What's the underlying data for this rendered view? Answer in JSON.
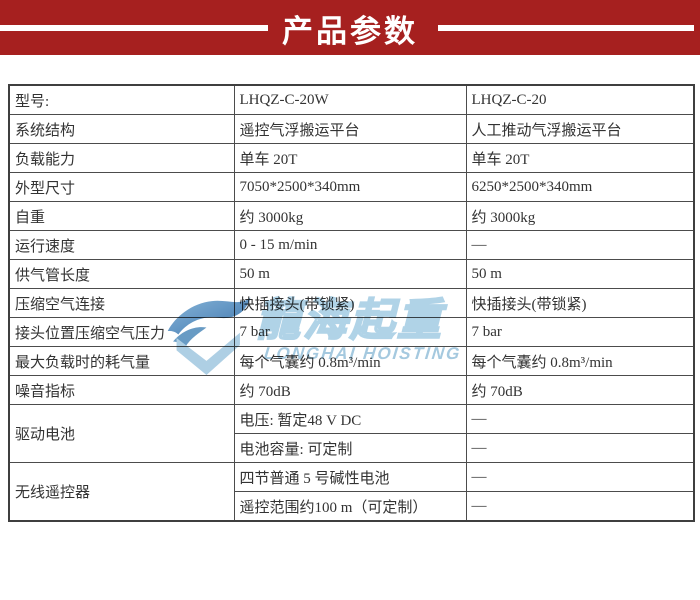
{
  "header": {
    "title": "产品参数",
    "banner_color": "#a6201f"
  },
  "colors": {
    "banner_red": "#a6201f",
    "table_border": "#4c4c4c",
    "table_text": "#333333",
    "watermark_light_blue": "#a9cfe5",
    "watermark_dark_blue": "#3d76ad"
  },
  "watermark": {
    "cn": "龍海起重",
    "en": "LONGHAI HOISTING",
    "logo_icon": "longhai-bird-chevron"
  },
  "table": {
    "rows": [
      {
        "label": "型号:",
        "cells": [
          "LHQZ-C-20W",
          "LHQZ-C-20"
        ]
      },
      {
        "label": "系统结构",
        "cells": [
          "遥控气浮搬运平台",
          "人工推动气浮搬运平台"
        ]
      },
      {
        "label": "负载能力",
        "cells": [
          "单车 20T",
          "单车 20T"
        ]
      },
      {
        "label": "外型尺寸",
        "cells": [
          "7050*2500*340mm",
          "6250*2500*340mm"
        ]
      },
      {
        "label": "自重",
        "cells": [
          "约 3000kg",
          "约 3000kg"
        ]
      },
      {
        "label": "运行速度",
        "cells": [
          "0 - 15 m/min",
          "—"
        ]
      },
      {
        "label": "供气管长度",
        "cells": [
          "50 m",
          "50 m"
        ]
      },
      {
        "label": "压缩空气连接",
        "cells": [
          "快插接头(带锁紧)",
          "快插接头(带锁紧)"
        ]
      },
      {
        "label": "接头位置压缩空气压力",
        "cells": [
          "7 bar",
          "7 bar"
        ]
      },
      {
        "label": "最大负载时的耗气量",
        "cells": [
          "每个气囊约 0.8m³/min",
          "每个气囊约 0.8m³/min"
        ]
      },
      {
        "label": "噪音指标",
        "cells": [
          "约 70dB",
          "约 70dB"
        ]
      },
      {
        "label": "驱动电池",
        "rowspan": 2,
        "cells": [
          "电压: 暂定48 V DC",
          "—"
        ]
      },
      {
        "label": null,
        "cells": [
          "电池容量: 可定制",
          "—"
        ]
      },
      {
        "label": "无线遥控器",
        "rowspan": 2,
        "cells": [
          "四节普通 5 号碱性电池",
          "—"
        ]
      },
      {
        "label": null,
        "cells": [
          "遥控范围约100 m（可定制）",
          "—"
        ]
      }
    ]
  }
}
